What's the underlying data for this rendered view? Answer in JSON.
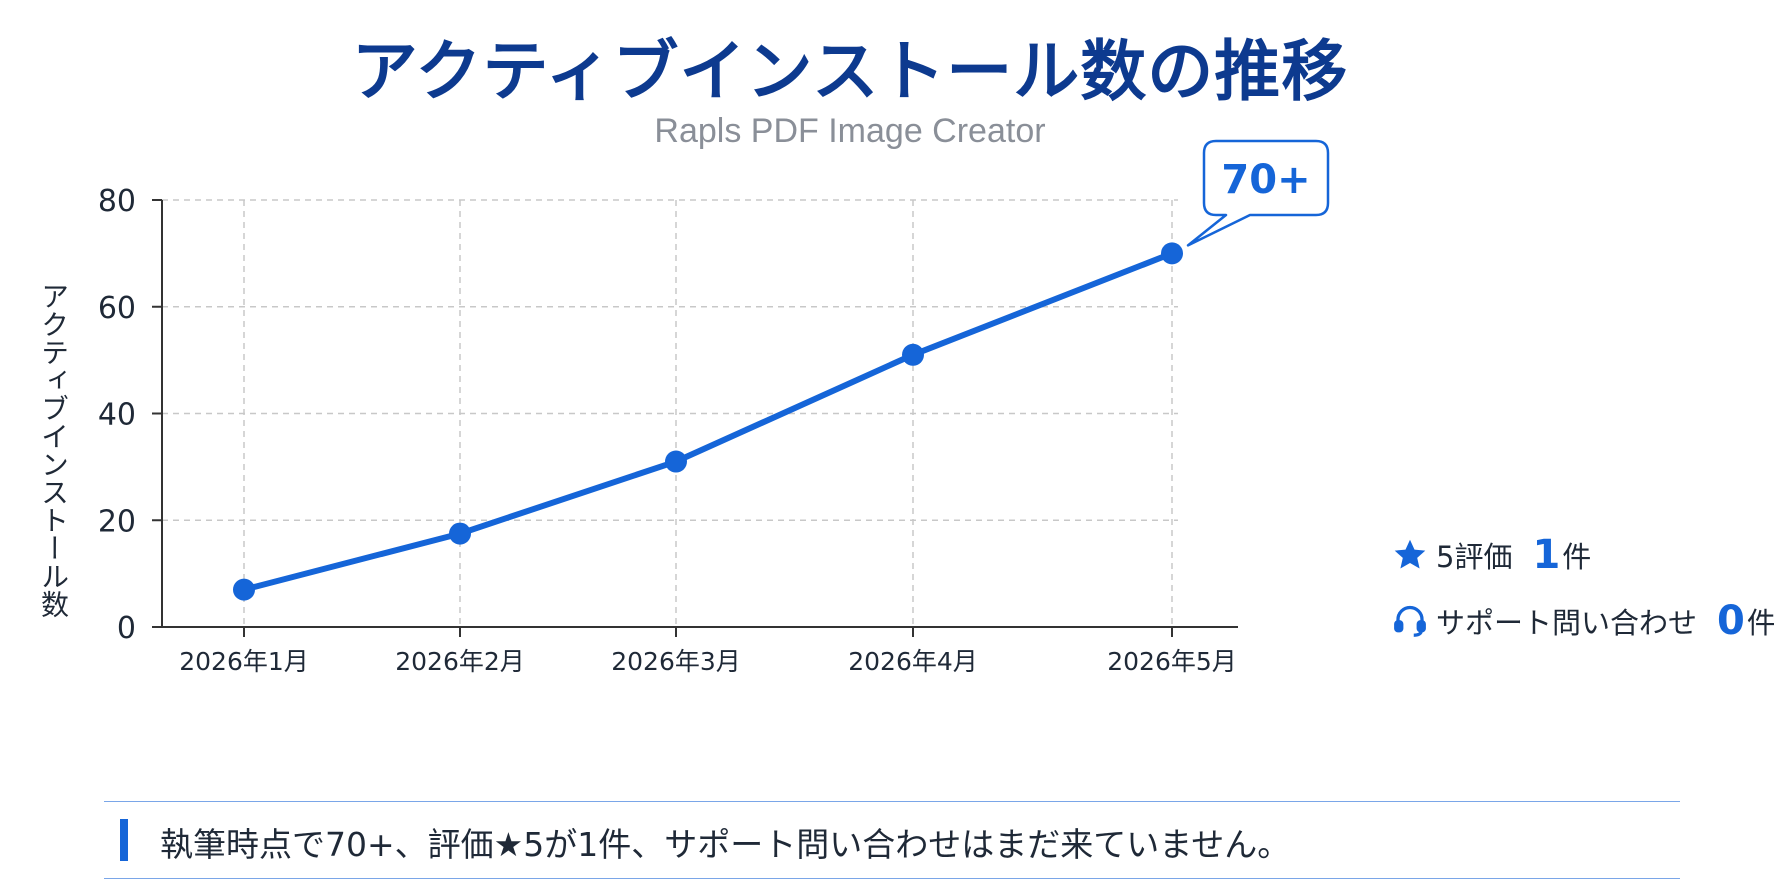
{
  "chart_data": {
    "type": "line",
    "title": "アクティブインストール数の推移",
    "subtitle": "Rapls PDF Image Creator",
    "xlabel": "",
    "ylabel": "アクティブインストール数",
    "categories": [
      "2026年1月",
      "2026年2月",
      "2026年3月",
      "2026年4月",
      "2026年5月"
    ],
    "series": [
      {
        "values": [
          7,
          17.5,
          31,
          51,
          70
        ]
      }
    ],
    "ylim": [
      0,
      80
    ],
    "yticks": [
      0,
      20,
      40,
      60,
      80
    ],
    "grid": true,
    "annotation": "70+",
    "color": "#1565d8"
  },
  "stats": [
    {
      "icon": "star-icon",
      "label": "5評価",
      "value": "1",
      "unit": "件"
    },
    {
      "icon": "headset-icon",
      "label": "サポート問い合わせ",
      "value": "0",
      "unit": "件"
    }
  ],
  "footer": {
    "text": "執筆時点で70+、評価★5が1件、サポート問い合わせはまだ来ていません。"
  }
}
